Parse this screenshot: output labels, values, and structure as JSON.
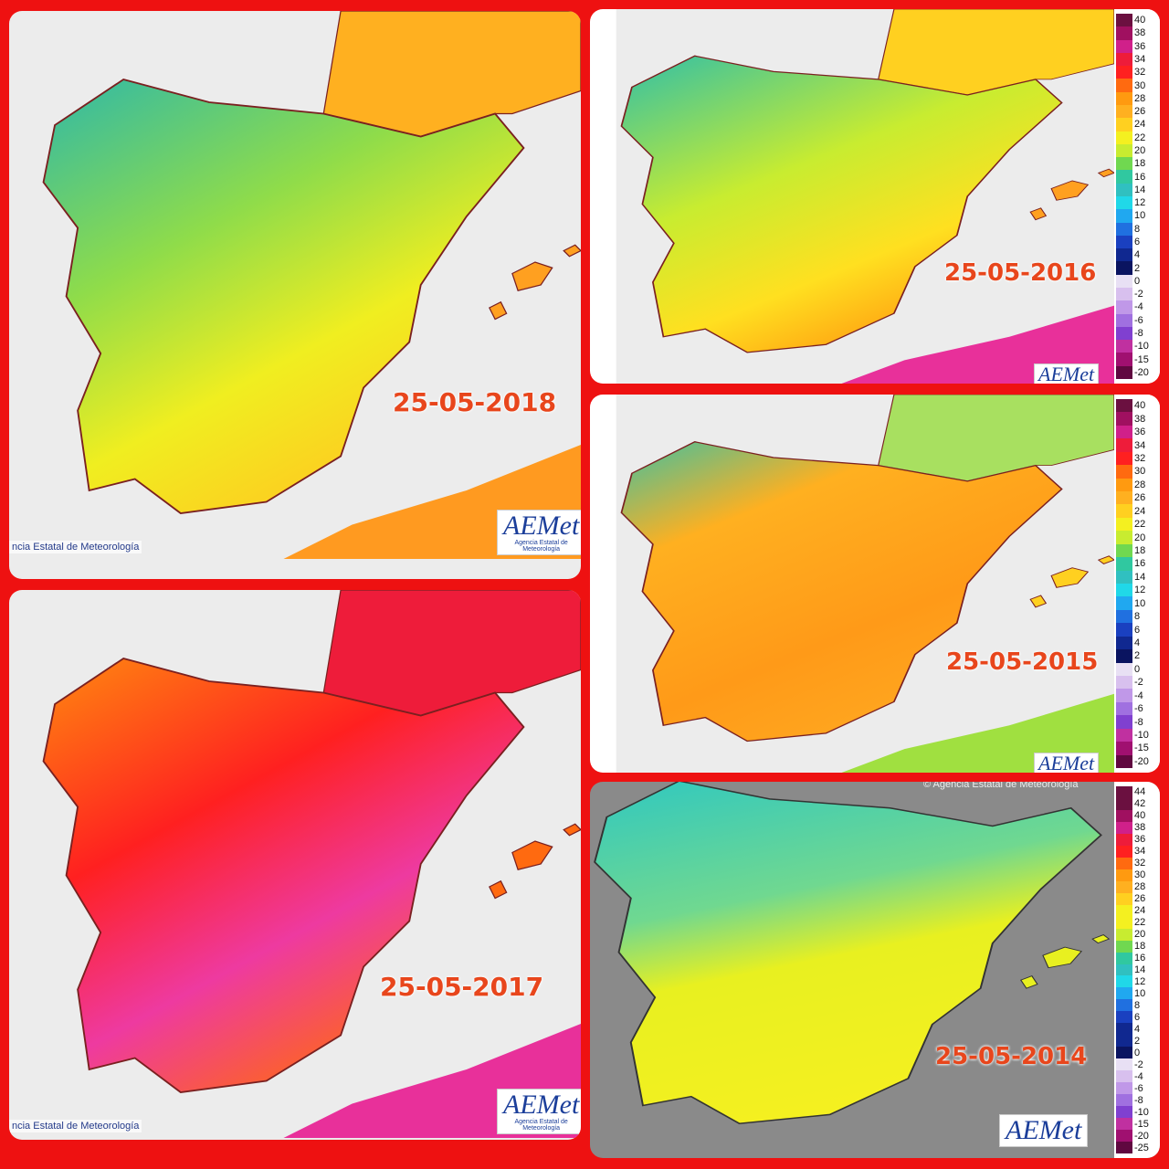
{
  "panels": [
    {
      "date": "25-05-2018",
      "credit": "ncia Estatal de Meteorología",
      "logo": "AEMet",
      "logo_sub": "Agencia Estatal de Meteorología"
    },
    {
      "date": "25-05-2017",
      "credit": "ncia Estatal de Meteorología",
      "logo": "AEMet",
      "logo_sub": "Agencia Estatal de Meteorología"
    },
    {
      "date": "25-05-2016",
      "logo": "AEMet"
    },
    {
      "date": "25-05-2015",
      "logo": "AEMet"
    },
    {
      "date": "25-05-2014",
      "credit": "© Agencia Estatal de Meteorología",
      "logo": "AEMet"
    }
  ],
  "scale_a": [
    40,
    38,
    36,
    34,
    32,
    30,
    28,
    26,
    24,
    22,
    20,
    18,
    16,
    14,
    12,
    10,
    8,
    6,
    4,
    2,
    0,
    -2,
    -4,
    -6,
    -8,
    -10,
    -15,
    -20
  ],
  "scale_b": [
    44,
    42,
    40,
    38,
    36,
    34,
    32,
    30,
    28,
    26,
    24,
    22,
    20,
    18,
    16,
    14,
    12,
    10,
    8,
    6,
    4,
    2,
    0,
    -2,
    -4,
    -6,
    -8,
    -10,
    -15,
    -20,
    -25
  ]
}
